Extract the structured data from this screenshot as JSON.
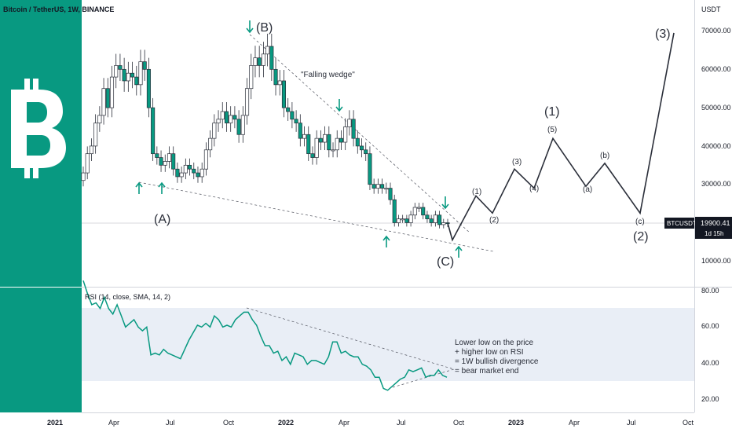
{
  "header": {
    "title": "Bitcoin / TetherUS, 1W, BINANCE"
  },
  "colors": {
    "brand": "#089981",
    "up": "#089981",
    "down": "#089981",
    "line": "#2a2e39",
    "rsi_band": "#e9eef6",
    "arrow": "#089981"
  },
  "price_axis": {
    "unit_label": "USDT",
    "ticks": [
      "70000.00",
      "60000.00",
      "50000.00",
      "40000.00",
      "30000.00",
      "10000.00"
    ],
    "last_price_label": "BTCUSDT",
    "last_price_value": "19900.41",
    "countdown": "1d 15h"
  },
  "time_axis": {
    "ticks": [
      "2021",
      "Apr",
      "Jul",
      "Oct",
      "2022",
      "Apr",
      "Jul",
      "Oct",
      "2023",
      "Apr",
      "Jul",
      "Oct"
    ]
  },
  "rsi_panel": {
    "title": "RSI (14, close, SMA, 14, 2)",
    "ticks": [
      "80.00",
      "60.00",
      "40.00",
      "20.00"
    ],
    "note": [
      "Lower low on the price",
      "+ higher low on RSI",
      "= 1W bullish divergence",
      "= bear market end"
    ]
  },
  "annotations": {
    "pattern": "\"Falling wedge\"",
    "major_waves": [
      "(A)",
      "(B)",
      "(C)"
    ],
    "impulse_labels": [
      "(1)",
      "(2)",
      "(3)",
      "(4)",
      "(5)",
      "(a)",
      "(b)",
      "(c)"
    ],
    "big_waves": [
      "(1)",
      "(2)",
      "(3)"
    ]
  },
  "chart_data": [
    {
      "type": "candlestick",
      "title": "Bitcoin / TetherUS, 1W, BINANCE",
      "ylabel": "USDT",
      "ylim": [
        5000,
        75000
      ],
      "x_ticks": [
        "2021",
        "Apr",
        "Jul",
        "Oct",
        "2022",
        "Apr",
        "Jul",
        "Oct",
        "2023",
        "Apr",
        "Jul",
        "Oct"
      ],
      "series_close_weekly": [
        33000,
        38000,
        40000,
        46000,
        48000,
        55000,
        50000,
        58000,
        61000,
        60000,
        57000,
        59000,
        58000,
        56000,
        62000,
        60000,
        50000,
        38000,
        37000,
        35000,
        36000,
        38000,
        34000,
        32000,
        33000,
        35000,
        34000,
        33000,
        32000,
        34000,
        39000,
        42000,
        46000,
        47000,
        49000,
        46000,
        48000,
        47000,
        43000,
        48000,
        55000,
        61000,
        63000,
        61000,
        64000,
        66000,
        60000,
        56000,
        57000,
        50000,
        49000,
        47000,
        46000,
        42000,
        43000,
        38000,
        37000,
        42000,
        41000,
        43000,
        39000,
        39000,
        42000,
        41000,
        45000,
        47000,
        42000,
        40000,
        39000,
        38000,
        30000,
        29000,
        30000,
        29000,
        29000,
        26000,
        20000,
        21000,
        21000,
        20000,
        22000,
        24000,
        24000,
        22000,
        21000,
        20000,
        22000,
        19500,
        20000,
        19900
      ],
      "projection": {
        "points": [
          {
            "label": "(C)",
            "value": 15500
          },
          {
            "label": "(1)",
            "value": 27000
          },
          {
            "label": "(2)",
            "value": 22500
          },
          {
            "label": "(3)",
            "value": 34000
          },
          {
            "label": "(4)",
            "value": 29000
          },
          {
            "label": "(5)",
            "value": 42000
          },
          {
            "label": "(a)",
            "value": 29500
          },
          {
            "label": "(b)",
            "value": 35500
          },
          {
            "label": "(c)",
            "value": 22500
          },
          {
            "label": "(3)",
            "value": 69500
          }
        ]
      },
      "current_price": 19900.41
    },
    {
      "type": "line",
      "title": "RSI (14, close, SMA, 14, 2)",
      "ylim": [
        15,
        85
      ],
      "values": [
        85,
        78,
        72,
        73,
        70,
        76,
        70,
        67,
        72,
        66,
        60,
        62,
        64,
        60,
        58,
        60,
        45,
        46,
        45,
        48,
        46,
        45,
        44,
        43,
        48,
        53,
        57,
        61,
        60,
        62,
        60,
        66,
        64,
        60,
        61,
        60,
        64,
        66,
        68,
        68,
        64,
        61,
        55,
        50,
        50,
        46,
        47,
        42,
        44,
        40,
        46,
        45,
        44,
        40,
        42,
        42,
        41,
        40,
        44,
        52,
        52,
        46,
        47,
        45,
        44,
        44,
        40,
        39,
        37,
        33,
        33,
        27,
        26,
        28,
        30,
        32,
        33,
        37,
        36,
        37,
        38,
        33,
        34,
        34,
        37,
        34,
        33
      ]
    }
  ]
}
